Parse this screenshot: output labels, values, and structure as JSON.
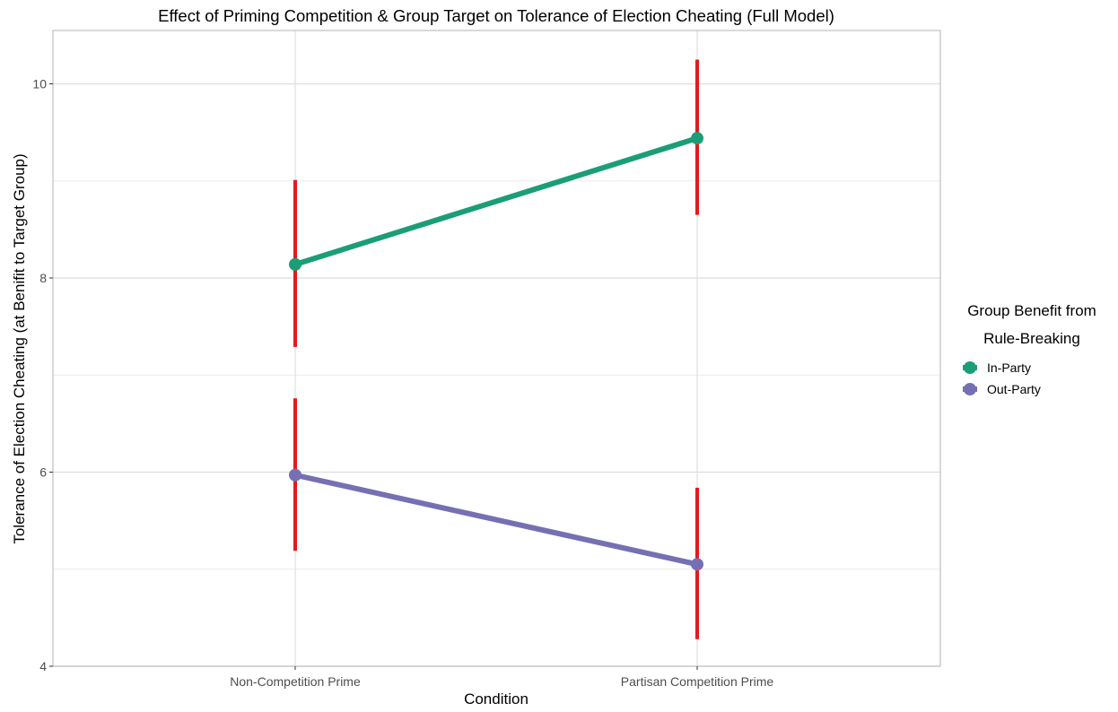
{
  "chart_data": {
    "type": "line",
    "title": "Effect of Priming Competition & Group Target on Tolerance of Election Cheating (Full Model)",
    "xlabel": "Condition",
    "ylabel": "Tolerance of Election Cheating (at Benifit to Target Group)",
    "categories": [
      "Non-Competition Prime",
      "Partisan Competition Prime"
    ],
    "ylim": [
      4,
      10.55
    ],
    "y_ticks": [
      "4",
      "6",
      "8",
      "10"
    ],
    "grid": true,
    "legend": {
      "title_lines": [
        "Group Benefit from",
        "Rule-Breaking"
      ],
      "position": "right"
    },
    "error_bar_color": "#e41a1c",
    "series": [
      {
        "name": "In-Party",
        "color": "#1b9e77",
        "values": [
          8.14,
          9.44
        ],
        "lower": [
          7.29,
          8.65
        ],
        "upper": [
          9.01,
          10.25
        ]
      },
      {
        "name": "Out-Party",
        "color": "#7570b3",
        "values": [
          5.97,
          5.05
        ],
        "lower": [
          5.19,
          4.28
        ],
        "upper": [
          6.76,
          5.84
        ]
      }
    ]
  }
}
